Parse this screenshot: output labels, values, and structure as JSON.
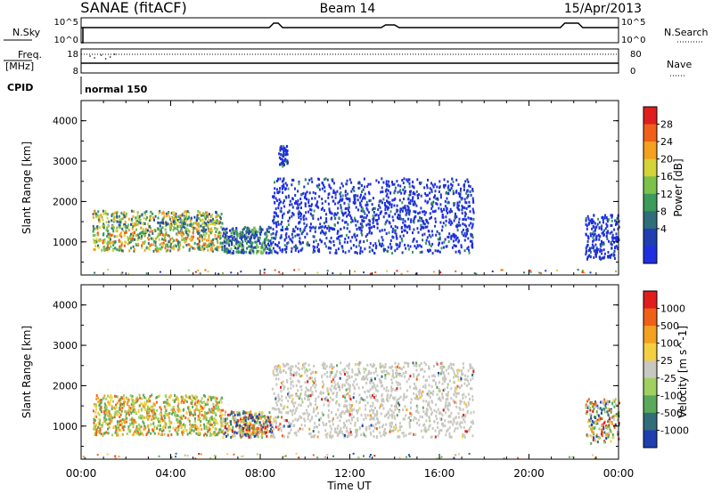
{
  "header": {
    "station": "SANAE (fitACF)",
    "beam": "Beam 14",
    "date": "15/Apr/2013"
  },
  "noise_panel": {
    "left_label": "N.Sky",
    "right_label": "N.Search",
    "tick_high": "10^5",
    "tick_low": "10^0",
    "right_tick_high": "10^5",
    "right_tick_low": "10^0"
  },
  "freq_panel": {
    "left_label_1": "Freq.",
    "left_label_2": "[MHz]",
    "right_label": "Nave",
    "left_ticks": [
      "18",
      "8"
    ],
    "right_ticks": [
      "80",
      "0"
    ]
  },
  "cpid": {
    "label": "CPID",
    "value": "normal 150"
  },
  "x_axis": {
    "title": "Time UT",
    "tick_labels": [
      "00:00",
      "04:00",
      "08:00",
      "12:00",
      "16:00",
      "20:00",
      "00:00"
    ]
  },
  "chart_data": [
    {
      "type": "heatmap",
      "name": "power",
      "ylabel": "Slant Range [km]",
      "xlabel": "Time UT",
      "xlim_hours": [
        0,
        24
      ],
      "ylim_km": [
        180,
        4500
      ],
      "y_ticks": [
        "4000",
        "3000",
        "2000",
        "1000"
      ],
      "colorbar": {
        "title": "Power [dB]",
        "tick_labels": [
          "28",
          "24",
          "20",
          "16",
          "12",
          "8",
          "4"
        ],
        "range": [
          0,
          30
        ],
        "colors": [
          "#1f2fe0",
          "#1f3fb0",
          "#2f6e7a",
          "#3c9a5a",
          "#7cc24a",
          "#d6d23a",
          "#f4a020",
          "#f06018",
          "#e01e1e"
        ]
      },
      "regions": [
        {
          "t": [
            0.5,
            6.3
          ],
          "r": [
            800,
            1800
          ],
          "level": "high"
        },
        {
          "t": [
            6.3,
            8.5
          ],
          "r": [
            750,
            1400
          ],
          "level": "medium"
        },
        {
          "t": [
            8.5,
            17.5
          ],
          "r": [
            750,
            2600
          ],
          "level": "low"
        },
        {
          "t": [
            8.8,
            9.2
          ],
          "r": [
            2900,
            3400
          ],
          "level": "low"
        },
        {
          "t": [
            22.5,
            24
          ],
          "r": [
            600,
            1700
          ],
          "level": "low"
        }
      ]
    },
    {
      "type": "heatmap",
      "name": "velocity",
      "ylabel": "Slant Range [km]",
      "xlabel": "Time UT",
      "xlim_hours": [
        0,
        24
      ],
      "ylim_km": [
        180,
        4500
      ],
      "y_ticks": [
        "4000",
        "3000",
        "2000",
        "1000"
      ],
      "colorbar": {
        "title": "Velocity [m s^-1]",
        "tick_labels": [
          "1000",
          "500",
          "100",
          "25",
          "-25",
          "-100",
          "-500",
          "-1000"
        ],
        "colors": [
          "#1f3fb0",
          "#2f6e7a",
          "#5aa85a",
          "#a0d060",
          "#c8c8c0",
          "#f4d040",
          "#f4a020",
          "#f06018",
          "#e01e1e"
        ]
      },
      "regions": [
        {
          "t": [
            0.5,
            6.3
          ],
          "r": [
            800,
            1800
          ],
          "level": "mixed-green-orange"
        },
        {
          "t": [
            6.3,
            8.5
          ],
          "r": [
            750,
            1400
          ],
          "level": "mixed"
        },
        {
          "t": [
            8.5,
            17.5
          ],
          "r": [
            750,
            2600
          ],
          "level": "ground-scatter-grey"
        },
        {
          "t": [
            22.5,
            24
          ],
          "r": [
            600,
            1700
          ],
          "level": "mixed"
        }
      ]
    }
  ]
}
